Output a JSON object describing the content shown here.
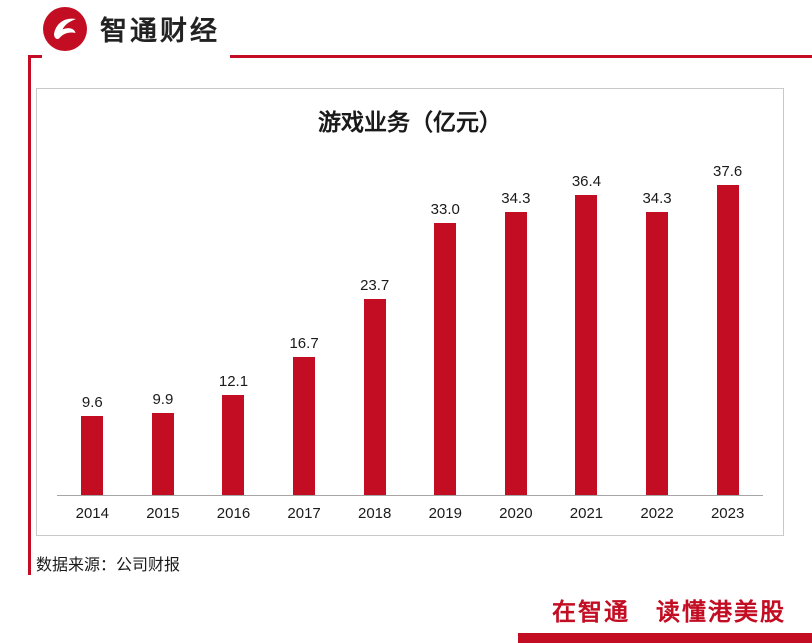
{
  "brand": {
    "name": "智通财经",
    "logo": "zhitong-logo"
  },
  "chart_data": {
    "type": "bar",
    "title": "游戏业务（亿元）",
    "categories": [
      "2014",
      "2015",
      "2016",
      "2017",
      "2018",
      "2019",
      "2020",
      "2021",
      "2022",
      "2023"
    ],
    "values": [
      9.6,
      9.9,
      12.1,
      16.7,
      23.7,
      33.0,
      34.3,
      36.4,
      34.3,
      37.6
    ],
    "value_labels": [
      "9.6",
      "9.9",
      "12.1",
      "16.7",
      "23.7",
      "33.0",
      "34.3",
      "36.4",
      "34.3",
      "37.6"
    ],
    "bar_color": "#C30D23",
    "xlabel": "",
    "ylabel": "",
    "ylim": [
      0,
      40
    ],
    "grid": false,
    "legend": false
  },
  "footer": {
    "source": "数据来源：公司财报",
    "slogan": "在智通　读懂港美股"
  },
  "colors": {
    "accent": "#C30D23",
    "text": "#1A1A1A",
    "box_border": "#C9C9C9",
    "axis": "#A6A6A6"
  }
}
